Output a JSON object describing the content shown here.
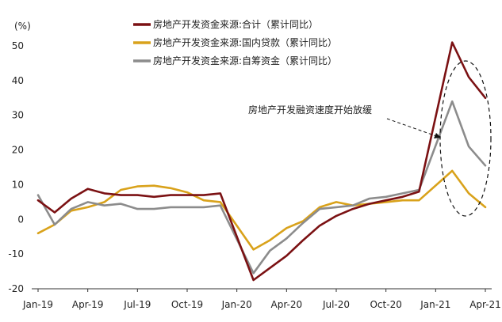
{
  "chart_data": {
    "type": "line",
    "yunit": "(%)",
    "ylim": [
      -20,
      55
    ],
    "yticks": [
      -20,
      -10,
      0,
      10,
      20,
      30,
      40,
      50
    ],
    "x": [
      "2019-01",
      "2019-02",
      "2019-03",
      "2019-04",
      "2019-05",
      "2019-06",
      "2019-07",
      "2019-08",
      "2019-09",
      "2019-10",
      "2019-11",
      "2019-12",
      "2020-01",
      "2020-02",
      "2020-03",
      "2020-04",
      "2020-05",
      "2020-06",
      "2020-07",
      "2020-08",
      "2020-09",
      "2020-10",
      "2020-11",
      "2020-12",
      "2021-01",
      "2021-02",
      "2021-03",
      "2021-04"
    ],
    "xticks": [
      {
        "index": 0,
        "label": "Jan-19"
      },
      {
        "index": 3,
        "label": "Apr-19"
      },
      {
        "index": 6,
        "label": "Jul-19"
      },
      {
        "index": 9,
        "label": "Oct-19"
      },
      {
        "index": 12,
        "label": "Jan-20"
      },
      {
        "index": 15,
        "label": "Apr-20"
      },
      {
        "index": 18,
        "label": "Jul-20"
      },
      {
        "index": 21,
        "label": "Oct-20"
      },
      {
        "index": 24,
        "label": "Jan-21"
      },
      {
        "index": 27,
        "label": "Apr-21"
      }
    ],
    "series": [
      {
        "name": "房地产开发资金来源:合计（累计同比）",
        "color": "#7b1113",
        "values": [
          5.5,
          2.0,
          6.0,
          8.8,
          7.5,
          7.0,
          7.0,
          6.5,
          7.0,
          7.0,
          7.0,
          7.5,
          null,
          -17.5,
          -14.0,
          -10.5,
          -6.0,
          -1.8,
          1.0,
          3.0,
          4.5,
          5.5,
          6.5,
          8.0,
          null,
          51.0,
          41.0,
          35.0
        ]
      },
      {
        "name": "房地产开发资金来源:国内贷款（累计同比）",
        "color": "#d9a21b",
        "values": [
          -4.0,
          -1.5,
          2.5,
          3.5,
          5.0,
          8.5,
          9.5,
          9.7,
          9.0,
          7.8,
          5.5,
          5.0,
          null,
          -8.7,
          -6.0,
          -2.5,
          -0.5,
          3.5,
          5.0,
          4.0,
          4.5,
          5.0,
          5.5,
          5.5,
          null,
          14.0,
          7.5,
          3.5
        ]
      },
      {
        "name": "房地产开发资金来源:自筹资金（累计同比）",
        "color": "#8c8c8c",
        "values": [
          7.0,
          -1.5,
          3.0,
          5.0,
          4.0,
          4.5,
          3.0,
          3.0,
          3.5,
          3.5,
          3.5,
          4.0,
          null,
          -15.5,
          -9.0,
          -5.5,
          -1.0,
          3.0,
          3.5,
          4.0,
          6.0,
          6.5,
          7.5,
          8.5,
          null,
          34.0,
          21.0,
          15.5
        ]
      }
    ],
    "annotation": "房地产开发融资速度开始放缓",
    "legend_position": "top"
  }
}
